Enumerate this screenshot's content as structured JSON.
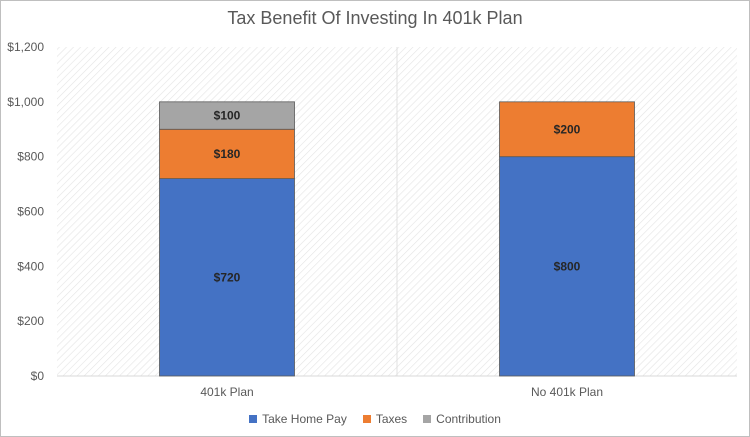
{
  "chart_data": {
    "type": "bar",
    "stacked": true,
    "title": "Tax Benefit Of Investing In 401k Plan",
    "xlabel": "",
    "ylabel": "",
    "categories": [
      "401k Plan",
      "No 401k Plan"
    ],
    "series": [
      {
        "name": "Take Home Pay",
        "values": [
          720,
          800
        ],
        "labels": [
          "$720",
          "$800"
        ],
        "color": "#4472c4"
      },
      {
        "name": "Taxes",
        "values": [
          180,
          200
        ],
        "labels": [
          "$180",
          "$200"
        ],
        "color": "#ed7d31"
      },
      {
        "name": "Contribution",
        "values": [
          100,
          0
        ],
        "labels": [
          "$100",
          ""
        ],
        "color": "#a5a5a5"
      }
    ],
    "ylim": [
      0,
      1200
    ],
    "yticks": [
      0,
      200,
      400,
      600,
      800,
      1000,
      1200
    ],
    "ytick_labels": [
      "$0",
      "$200",
      "$400",
      "$600",
      "$800",
      "$1,000",
      "$1,200"
    ],
    "grid": true,
    "legend_position": "bottom"
  }
}
